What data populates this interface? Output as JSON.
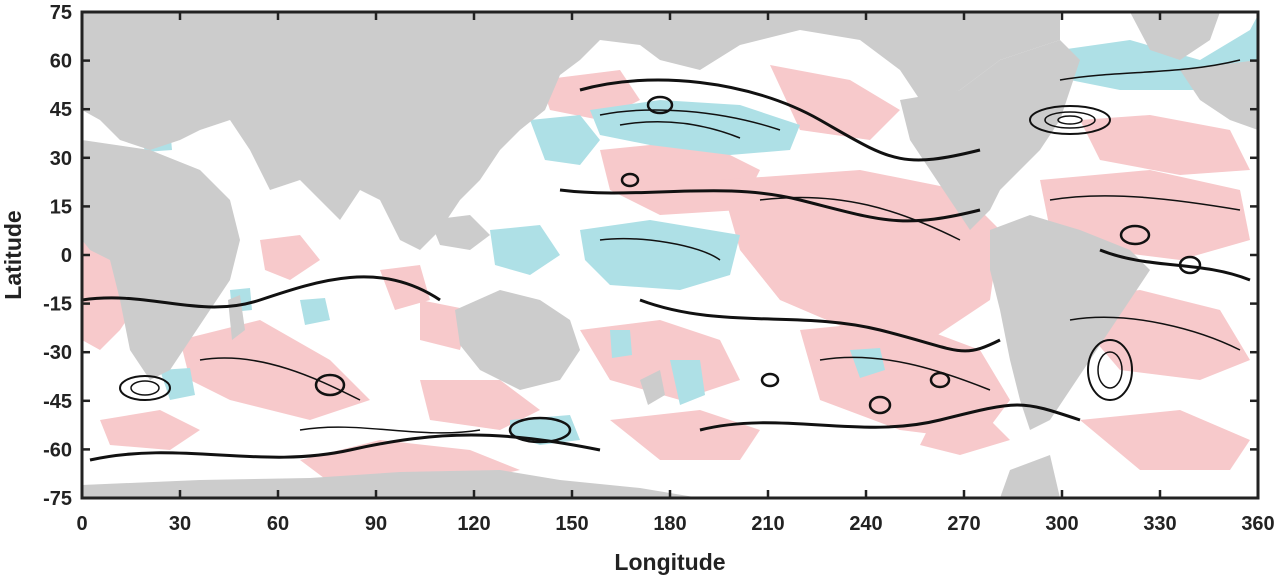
{
  "map": {
    "xlabel": "Longitude",
    "ylabel": "Latitude",
    "x_ticks": [
      "0",
      "30",
      "60",
      "90",
      "120",
      "150",
      "180",
      "210",
      "240",
      "270",
      "300",
      "330",
      "360"
    ],
    "y_ticks": [
      "75",
      "60",
      "45",
      "30",
      "15",
      "0",
      "-15",
      "-30",
      "-45",
      "-60",
      "-75"
    ],
    "x_range": [
      0,
      360
    ],
    "y_range": [
      -75,
      75
    ],
    "colors": {
      "land": "#cccccc",
      "positive_anomaly": "#f7c9cb",
      "negative_anomaly": "#aee0e6",
      "contour": "#111111",
      "ocean": "#ffffff"
    }
  }
}
